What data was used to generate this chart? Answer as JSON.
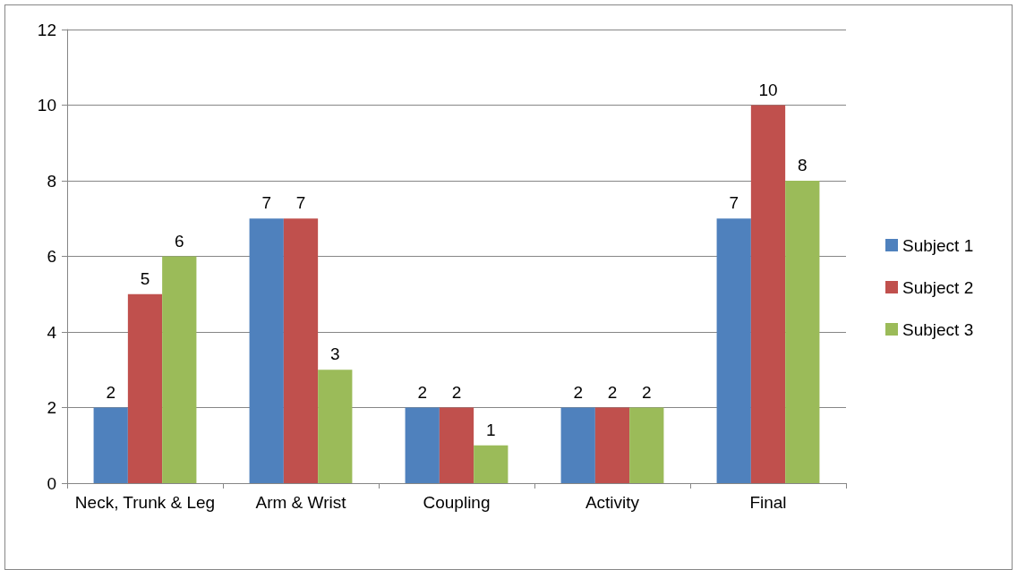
{
  "chart_data": {
    "type": "bar",
    "categories": [
      "Neck, Trunk & Leg",
      "Arm & Wrist",
      "Coupling",
      "Activity",
      "Final"
    ],
    "series": [
      {
        "name": "Subject 1",
        "color": "#4f81bd",
        "values": [
          2,
          7,
          2,
          2,
          7
        ]
      },
      {
        "name": "Subject 2",
        "color": "#c0504d",
        "values": [
          5,
          7,
          2,
          2,
          10
        ]
      },
      {
        "name": "Subject 3",
        "color": "#9bbb59",
        "values": [
          6,
          3,
          1,
          2,
          8
        ]
      }
    ],
    "ylim": [
      0,
      12
    ],
    "yticks": [
      0,
      2,
      4,
      6,
      8,
      10,
      12
    ],
    "grid": "y",
    "legend": "right",
    "data_labels": true
  }
}
